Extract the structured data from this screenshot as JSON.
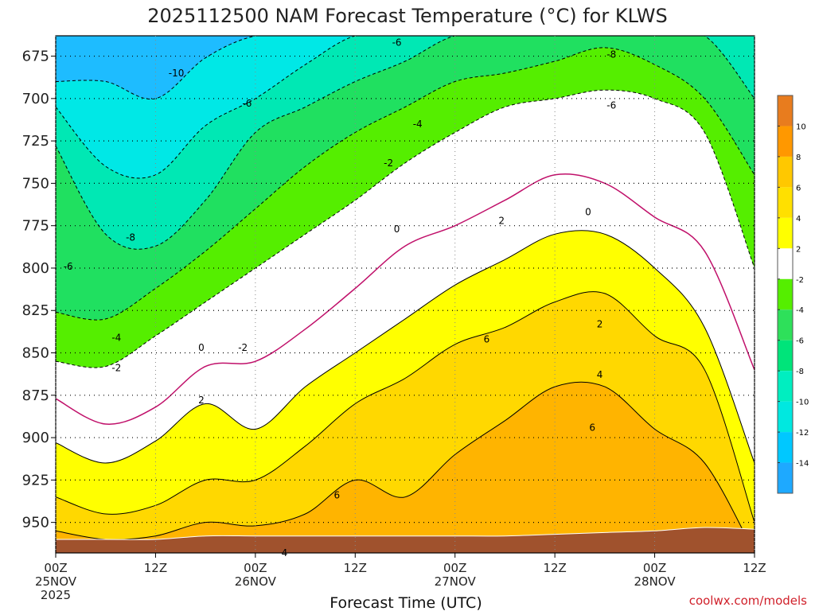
{
  "chart_data": {
    "type": "heatmap",
    "title": "2025112500 NAM Forecast Temperature (°C) for KLWS",
    "xlabel": "Forecast Time (UTC)",
    "ylabel": "",
    "x_ticks": [
      {
        "hour": 0,
        "label": "00Z",
        "sub1": "25NOV",
        "sub2": "2025"
      },
      {
        "hour": 12,
        "label": "12Z",
        "sub1": "",
        "sub2": ""
      },
      {
        "hour": 24,
        "label": "00Z",
        "sub1": "26NOV",
        "sub2": ""
      },
      {
        "hour": 36,
        "label": "12Z",
        "sub1": "",
        "sub2": ""
      },
      {
        "hour": 48,
        "label": "00Z",
        "sub1": "27NOV",
        "sub2": ""
      },
      {
        "hour": 60,
        "label": "12Z",
        "sub1": "",
        "sub2": ""
      },
      {
        "hour": 72,
        "label": "00Z",
        "sub1": "28NOV",
        "sub2": ""
      },
      {
        "hour": 84,
        "label": "12Z",
        "sub1": "",
        "sub2": ""
      }
    ],
    "xlim": [
      0,
      84
    ],
    "y_ticks": [
      675,
      700,
      725,
      750,
      775,
      800,
      825,
      850,
      875,
      900,
      925,
      950
    ],
    "ylim": [
      663,
      968
    ],
    "y_reversed": true,
    "grid": true,
    "colorbar_levels": [
      -16,
      -14,
      -12,
      -10,
      -8,
      -6,
      -4,
      -2,
      2,
      4,
      6,
      8,
      10,
      12
    ],
    "colorbar_labels": [
      "-14",
      "-12",
      "-10",
      "-8",
      "-6",
      "-4",
      "-2",
      "2",
      "4",
      "6",
      "8",
      "10"
    ],
    "colorbar_colors": [
      "#1ea9ff",
      "#00c8ff",
      "#00e8e0",
      "#00eec0",
      "#00e47a",
      "#2ee05a",
      "#55ee00",
      "#ffffff",
      "#ffff00",
      "#ffe000",
      "#ffc800",
      "#ff9800",
      "#e87c1e"
    ],
    "boundaries": {
      "hours": [
        0,
        6,
        12,
        18,
        24,
        30,
        36,
        42,
        48,
        54,
        60,
        66,
        72,
        78,
        84
      ],
      "t_neg10": [
        690,
        690,
        700,
        676,
        663,
        663,
        663,
        663,
        663,
        663,
        663,
        663,
        663,
        663,
        663
      ],
      "t_neg8": [
        705,
        740,
        745,
        716,
        700,
        680,
        663,
        663,
        663,
        663,
        663,
        663,
        663,
        663,
        663
      ],
      "t_neg6": [
        728,
        780,
        787,
        760,
        720,
        705,
        690,
        678,
        663,
        663,
        663,
        663,
        663,
        663,
        700
      ],
      "t_neg4": [
        826,
        830,
        812,
        790,
        765,
        740,
        720,
        705,
        690,
        685,
        678,
        670,
        680,
        700,
        745
      ],
      "t_neg2": [
        855,
        858,
        840,
        820,
        800,
        780,
        760,
        738,
        720,
        705,
        700,
        695,
        700,
        720,
        800
      ],
      "t_0": [
        877,
        892,
        882,
        858,
        855,
        836,
        812,
        787,
        775,
        760,
        745,
        750,
        770,
        790,
        860
      ],
      "t_2": [
        903,
        915,
        902,
        880,
        895,
        870,
        850,
        830,
        810,
        795,
        780,
        780,
        800,
        835,
        915
      ],
      "t_4": [
        935,
        945,
        940,
        925,
        925,
        905,
        880,
        865,
        845,
        835,
        820,
        815,
        840,
        860,
        950
      ],
      "t_6": [
        955,
        960,
        958,
        950,
        952,
        945,
        925,
        935,
        910,
        890,
        870,
        870,
        895,
        915,
        968
      ]
    },
    "ground": [
      960,
      960,
      960,
      958,
      958,
      958,
      958,
      958,
      958,
      958,
      957,
      956,
      955,
      953,
      954
    ],
    "contour_labels": [
      {
        "text": "-10",
        "hour": 14.5,
        "p": 685
      },
      {
        "text": "-8",
        "hour": 9,
        "p": 782
      },
      {
        "text": "-6",
        "hour": 1.5,
        "p": 799
      },
      {
        "text": "-4",
        "hour": 7.3,
        "p": 841
      },
      {
        "text": "-2",
        "hour": 7.3,
        "p": 859
      },
      {
        "text": "0",
        "hour": 17.5,
        "p": 847
      },
      {
        "text": "-2",
        "hour": 22.5,
        "p": 847
      },
      {
        "text": "2",
        "hour": 17.5,
        "p": 878
      },
      {
        "text": "-6",
        "hour": 23,
        "p": 703
      },
      {
        "text": "-6",
        "hour": 41,
        "p": 667
      },
      {
        "text": "-4",
        "hour": 43.5,
        "p": 715
      },
      {
        "text": "-2",
        "hour": 40,
        "p": 738
      },
      {
        "text": "0",
        "hour": 41,
        "p": 777
      },
      {
        "text": "2",
        "hour": 53.6,
        "p": 772
      },
      {
        "text": "0",
        "hour": 64,
        "p": 767
      },
      {
        "text": "-8",
        "hour": 66.8,
        "p": 674
      },
      {
        "text": "-6",
        "hour": 66.8,
        "p": 704
      },
      {
        "text": "6",
        "hour": 51.8,
        "p": 842
      },
      {
        "text": "2",
        "hour": 65.4,
        "p": 833
      },
      {
        "text": "4",
        "hour": 65.4,
        "p": 863
      },
      {
        "text": "6",
        "hour": 64.5,
        "p": 894
      },
      {
        "text": "6",
        "hour": 33.8,
        "p": 934
      },
      {
        "text": "4",
        "hour": 27.5,
        "p": 968
      }
    ],
    "credit": "coolwx.com/models"
  }
}
